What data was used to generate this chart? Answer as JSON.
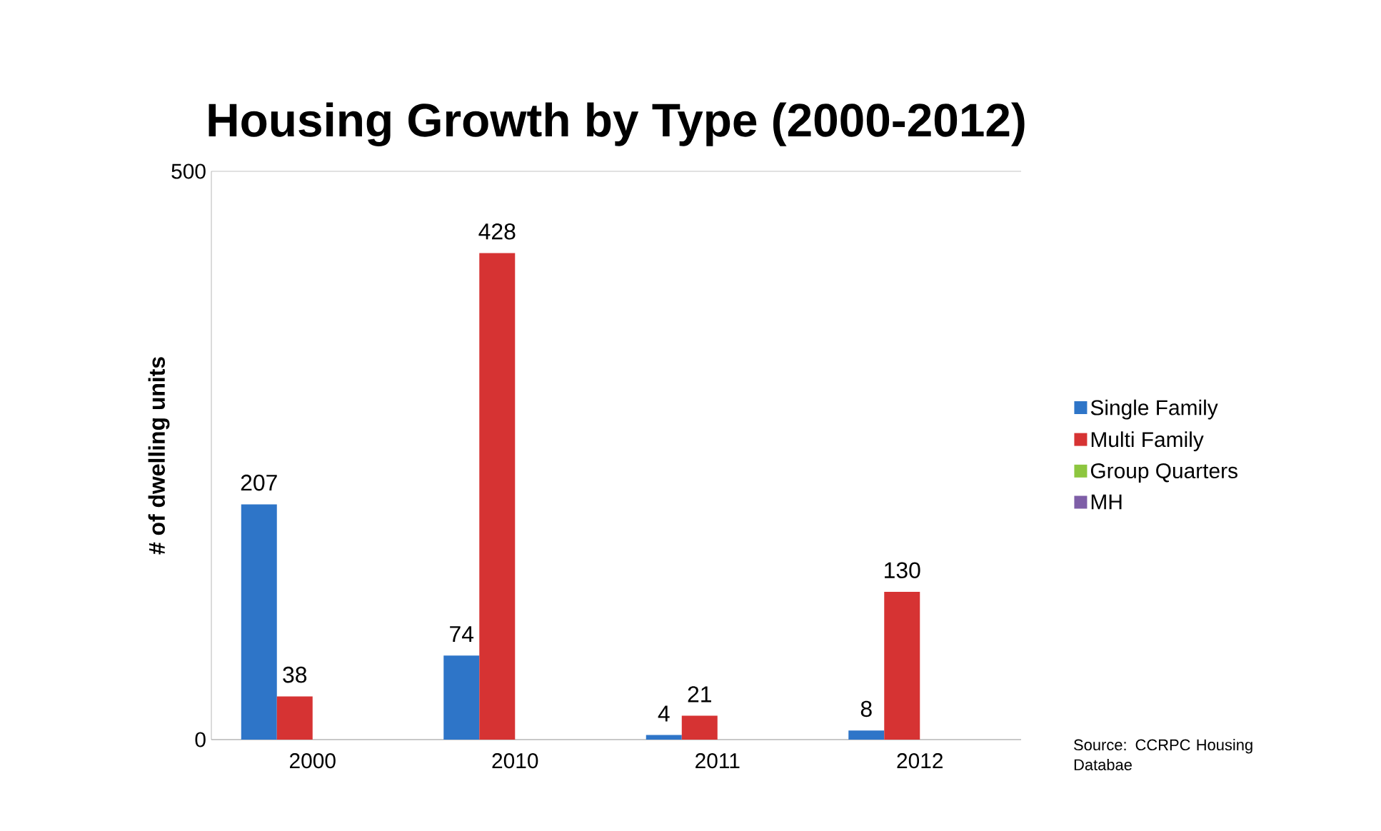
{
  "chart_data": {
    "type": "bar",
    "title": "Housing Growth by Type (2000-2012)",
    "ylabel": "# of dwelling units",
    "categories": [
      "2000",
      "2010",
      "2011",
      "2012"
    ],
    "series": [
      {
        "name": "Single Family",
        "color": "#2e75c8",
        "values": [
          207,
          74,
          4,
          8
        ],
        "value_labels": [
          "207",
          "74",
          "4",
          "8"
        ]
      },
      {
        "name": "Multi Family",
        "color": "#d63333",
        "values": [
          38,
          428,
          21,
          130
        ],
        "value_labels": [
          "38",
          "428",
          "21",
          "130"
        ]
      },
      {
        "name": "Group Quarters",
        "color": "#8dc63f",
        "values": [
          0,
          0,
          0,
          0
        ]
      },
      {
        "name": "MH",
        "color": "#7e5ea7",
        "values": [
          0,
          0,
          0,
          0
        ]
      }
    ],
    "ylim": [
      0,
      500
    ],
    "yticks": [
      0,
      500
    ],
    "grid": "y",
    "legend": "right",
    "annotations": [
      "Source: CCRPC Housing Databae"
    ]
  }
}
